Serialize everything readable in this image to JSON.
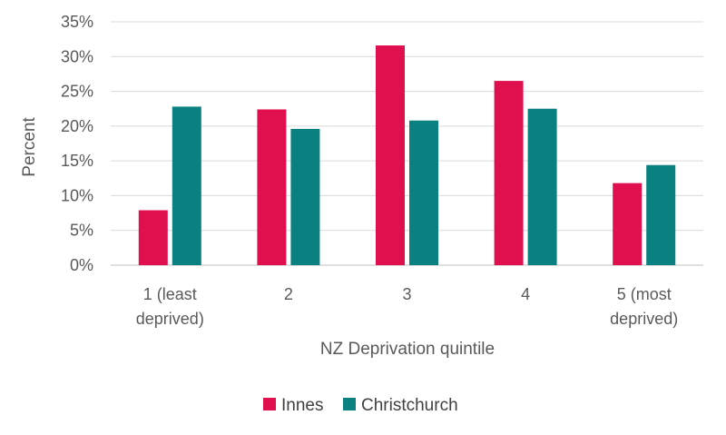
{
  "chart_data": {
    "type": "bar",
    "title": "",
    "xlabel": "NZ Deprivation quintile",
    "ylabel": "Percent",
    "ylim": [
      0,
      35
    ],
    "yticks": [
      "0%",
      "5%",
      "10%",
      "15%",
      "20%",
      "25%",
      "30%",
      "35%"
    ],
    "categories": [
      [
        "1 (least",
        "deprived)"
      ],
      [
        "2"
      ],
      [
        "3"
      ],
      [
        "4"
      ],
      [
        "5 (most",
        "deprived)"
      ]
    ],
    "series": [
      {
        "name": "Innes",
        "color": "#E0104F",
        "values": [
          7.9,
          22.4,
          31.6,
          26.5,
          11.8
        ]
      },
      {
        "name": "Christchurch",
        "color": "#0A8080",
        "values": [
          22.8,
          19.6,
          20.8,
          22.5,
          14.4
        ]
      }
    ],
    "grid": true,
    "legend": "bottom-center"
  }
}
